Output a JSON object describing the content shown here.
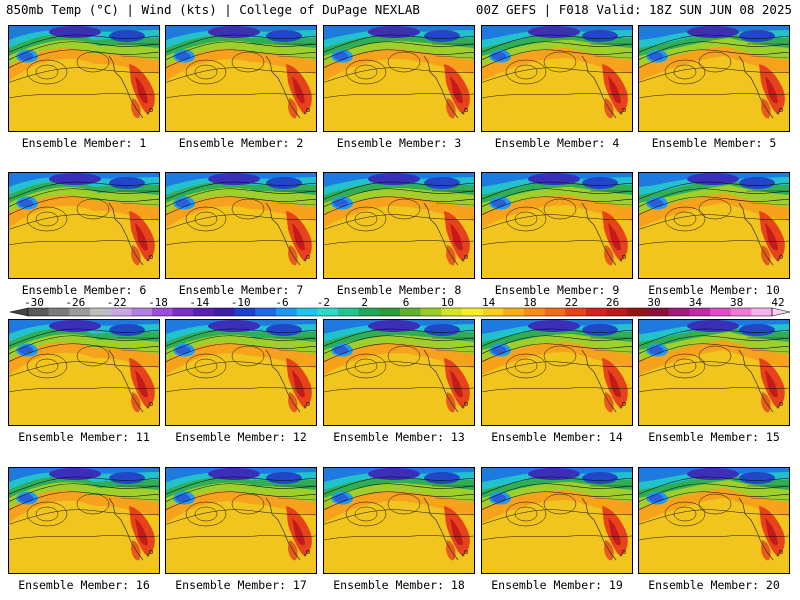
{
  "header": {
    "left": "850mb Temp (°C) | Wind (kts) | College of DuPage NEXLAB",
    "right": "00Z GEFS | F018 Valid: 18Z SUN JUN 08 2025"
  },
  "panels": [
    {
      "label": "Ensemble Member: 1"
    },
    {
      "label": "Ensemble Member: 2"
    },
    {
      "label": "Ensemble Member: 3"
    },
    {
      "label": "Ensemble Member: 4"
    },
    {
      "label": "Ensemble Member: 5"
    },
    {
      "label": "Ensemble Member: 6"
    },
    {
      "label": "Ensemble Member: 7"
    },
    {
      "label": "Ensemble Member: 8"
    },
    {
      "label": "Ensemble Member: 9"
    },
    {
      "label": "Ensemble Member: 10"
    },
    {
      "label": "Ensemble Member: 11"
    },
    {
      "label": "Ensemble Member: 12"
    },
    {
      "label": "Ensemble Member: 13"
    },
    {
      "label": "Ensemble Member: 14"
    },
    {
      "label": "Ensemble Member: 15"
    },
    {
      "label": "Ensemble Member: 16"
    },
    {
      "label": "Ensemble Member: 17"
    },
    {
      "label": "Ensemble Member: 18"
    },
    {
      "label": "Ensemble Member: 19"
    },
    {
      "label": "Ensemble Member: 20"
    }
  ],
  "colorbar": {
    "labels": [
      "-30",
      "-26",
      "-22",
      "-18",
      "-14",
      "-10",
      "-6",
      "-2",
      "2",
      "6",
      "10",
      "14",
      "18",
      "22",
      "26",
      "30",
      "34",
      "38",
      "42"
    ],
    "colors": [
      "#5a5a5a",
      "#7b7b7b",
      "#9a9a9a",
      "#bdbdbd",
      "#c9a6e6",
      "#b07fe0",
      "#9b4fd8",
      "#7a2fc8",
      "#5a1fb4",
      "#3a1fa8",
      "#1f3fd0",
      "#1f6ae6",
      "#1f96f0",
      "#22c2ee",
      "#2fd8c8",
      "#25c48e",
      "#1fa85c",
      "#2f9a3a",
      "#5fb22f",
      "#97cc2a",
      "#d2e428",
      "#f5ee2a",
      "#f7d020",
      "#f7b01c",
      "#f78e1c",
      "#f26a1c",
      "#e8421c",
      "#d42020",
      "#b81a1a",
      "#941414",
      "#8a0f3a",
      "#a01a7a",
      "#c32aa8",
      "#de4ac8",
      "#ee7ad8",
      "#f6b0ea"
    ],
    "under_color": "#444444",
    "over_color": "#f8d0f2"
  }
}
